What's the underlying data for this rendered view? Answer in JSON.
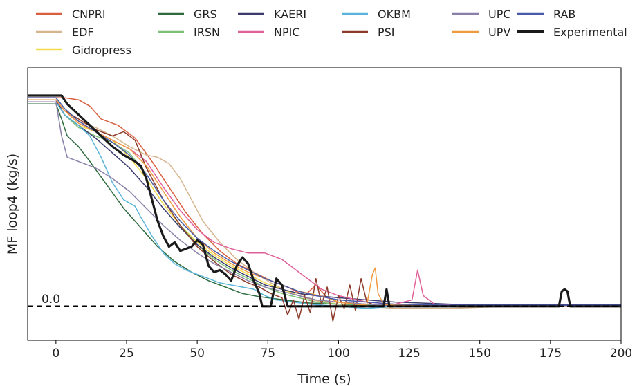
{
  "chart_data": {
    "type": "line",
    "xlabel": "Time (s)",
    "ylabel": "MF loop4 (kg/s)",
    "xlim": [
      -10,
      200
    ],
    "ylim": [
      -0.16,
      1.12
    ],
    "xticks": [
      0,
      25,
      50,
      75,
      100,
      125,
      150,
      175,
      200
    ],
    "xtick_labels": [
      "0",
      "25",
      "50",
      "75",
      "100",
      "125",
      "150",
      "175",
      "200"
    ],
    "grid": false,
    "legend_placement": "top (above plot, 6 columns)",
    "reference_line": {
      "y": 0.0,
      "label": "0.0",
      "style": "dashed",
      "color": "#000000"
    },
    "series": [
      {
        "name": "CNPRI",
        "color": "#d95f3e",
        "x": [
          -10,
          0,
          3,
          8,
          12,
          16,
          22,
          28,
          34,
          40,
          46,
          52,
          58,
          64,
          70,
          76,
          82,
          88,
          92,
          96,
          100,
          110,
          120,
          140,
          160,
          180,
          200
        ],
        "y": [
          0.98,
          0.98,
          0.98,
          0.97,
          0.94,
          0.88,
          0.85,
          0.79,
          0.68,
          0.56,
          0.44,
          0.34,
          0.26,
          0.2,
          0.16,
          0.12,
          0.09,
          0.05,
          0.1,
          0.04,
          0.02,
          0.01,
          0.01,
          0.005,
          0.005,
          0.005,
          0.005
        ]
      },
      {
        "name": "EDF",
        "color": "#d6b58e",
        "x": [
          -10,
          0,
          3,
          8,
          14,
          20,
          26,
          32,
          36,
          40,
          44,
          48,
          52,
          58,
          64,
          70,
          76,
          82,
          88,
          94,
          100,
          110,
          120,
          140,
          160,
          180,
          200
        ],
        "y": [
          0.96,
          0.96,
          0.92,
          0.87,
          0.84,
          0.8,
          0.75,
          0.71,
          0.7,
          0.67,
          0.6,
          0.5,
          0.4,
          0.3,
          0.22,
          0.16,
          0.11,
          0.07,
          0.04,
          0.02,
          0.01,
          0.0,
          -0.01,
          -0.01,
          0.0,
          0.0,
          0.0
        ]
      },
      {
        "name": "Gidropress",
        "color": "#f2dc4b",
        "x": [
          -10,
          0,
          3,
          8,
          14,
          20,
          26,
          32,
          38,
          44,
          50,
          56,
          62,
          68,
          74,
          80,
          86,
          92,
          98,
          110,
          130,
          160,
          200
        ],
        "y": [
          0.96,
          0.96,
          0.9,
          0.85,
          0.82,
          0.78,
          0.7,
          0.6,
          0.48,
          0.38,
          0.3,
          0.24,
          0.19,
          0.15,
          0.11,
          0.08,
          0.05,
          0.03,
          0.02,
          0.01,
          0.005,
          0.005,
          0.005
        ]
      },
      {
        "name": "GRS",
        "color": "#2e6b3e",
        "x": [
          -10,
          0,
          2,
          4,
          8,
          12,
          18,
          24,
          30,
          36,
          42,
          48,
          54,
          60,
          66,
          72,
          78,
          84,
          90,
          100,
          110,
          130,
          160,
          200
        ],
        "y": [
          0.95,
          0.95,
          0.88,
          0.8,
          0.75,
          0.68,
          0.57,
          0.46,
          0.37,
          0.28,
          0.21,
          0.16,
          0.12,
          0.09,
          0.06,
          0.045,
          0.035,
          0.025,
          0.015,
          0.01,
          0.005,
          0.0,
          0.0,
          0.0
        ]
      },
      {
        "name": "IRSN",
        "color": "#7cbf77",
        "x": [
          -10,
          0,
          3,
          8,
          14,
          20,
          26,
          32,
          38,
          44,
          50,
          56,
          62,
          68,
          74,
          80,
          86,
          92,
          100,
          120,
          160,
          200
        ],
        "y": [
          0.97,
          0.97,
          0.9,
          0.84,
          0.8,
          0.77,
          0.72,
          0.62,
          0.5,
          0.38,
          0.29,
          0.22,
          0.17,
          0.13,
          0.09,
          0.06,
          0.04,
          0.02,
          0.01,
          0.005,
          0.0,
          0.0
        ]
      },
      {
        "name": "KAERI",
        "color": "#3b3b6e",
        "x": [
          -10,
          0,
          3,
          8,
          14,
          20,
          26,
          32,
          38,
          44,
          50,
          56,
          62,
          68,
          74,
          80,
          86,
          92,
          100,
          110,
          120,
          140,
          160,
          180,
          200
        ],
        "y": [
          0.97,
          0.97,
          0.9,
          0.85,
          0.79,
          0.72,
          0.65,
          0.56,
          0.46,
          0.37,
          0.29,
          0.23,
          0.18,
          0.14,
          0.1,
          0.08,
          0.06,
          0.05,
          0.04,
          0.03,
          0.02,
          0.01,
          0.01,
          0.01,
          0.01
        ]
      },
      {
        "name": "NPIC",
        "color": "#e0609a",
        "x": [
          -10,
          0,
          3,
          8,
          14,
          20,
          26,
          32,
          38,
          44,
          50,
          56,
          62,
          68,
          74,
          80,
          86,
          90,
          94,
          100,
          110,
          120,
          126,
          128,
          130,
          134,
          140,
          160,
          180,
          200
        ],
        "y": [
          0.97,
          0.97,
          0.92,
          0.86,
          0.82,
          0.78,
          0.74,
          0.68,
          0.56,
          0.45,
          0.36,
          0.3,
          0.27,
          0.25,
          0.25,
          0.22,
          0.16,
          0.12,
          0.08,
          0.05,
          0.02,
          0.01,
          0.03,
          0.17,
          0.05,
          0.01,
          0.005,
          0.005,
          0.005,
          0.005
        ]
      },
      {
        "name": "OKBM",
        "color": "#5ab4d9",
        "x": [
          -10,
          0,
          3,
          8,
          12,
          16,
          20,
          24,
          28,
          30,
          34,
          38,
          42,
          46,
          50,
          54,
          58,
          62,
          66,
          70,
          74,
          78,
          84,
          90,
          100,
          110,
          120,
          140,
          160,
          200
        ],
        "y": [
          0.96,
          0.96,
          0.9,
          0.85,
          0.8,
          0.7,
          0.58,
          0.5,
          0.47,
          0.42,
          0.33,
          0.25,
          0.2,
          0.17,
          0.15,
          0.13,
          0.11,
          0.1,
          0.09,
          0.08,
          0.05,
          0.03,
          0.02,
          0.01,
          0.0,
          -0.01,
          0.0,
          0.0,
          0.0,
          0.0
        ]
      },
      {
        "name": "PSI",
        "color": "#8c3a2a",
        "x": [
          -10,
          0,
          3,
          8,
          14,
          20,
          24,
          28,
          32,
          38,
          44,
          50,
          56,
          62,
          68,
          72,
          76,
          80,
          82,
          84,
          86,
          88,
          90,
          92,
          94,
          96,
          98,
          100,
          102,
          104,
          106,
          108,
          110,
          112,
          114,
          116,
          120,
          140,
          160,
          200
        ],
        "y": [
          0.97,
          0.97,
          0.92,
          0.88,
          0.83,
          0.8,
          0.82,
          0.78,
          0.65,
          0.5,
          0.38,
          0.28,
          0.21,
          0.15,
          0.11,
          0.09,
          0.06,
          0.04,
          -0.04,
          0.03,
          -0.06,
          0.05,
          -0.03,
          0.13,
          0.01,
          0.09,
          -0.07,
          0.05,
          -0.01,
          0.1,
          -0.02,
          0.13,
          0.02,
          0.01,
          0.0,
          0.005,
          0.0,
          0.0,
          0.0,
          0.0
        ]
      },
      {
        "name": "UPC",
        "color": "#8a7fa8",
        "x": [
          -10,
          0,
          2,
          4,
          8,
          14,
          20,
          26,
          32,
          38,
          44,
          50,
          56,
          62,
          68,
          74,
          80,
          86,
          92,
          100,
          110,
          120,
          140,
          160,
          200
        ],
        "y": [
          0.96,
          0.96,
          0.8,
          0.7,
          0.68,
          0.65,
          0.6,
          0.54,
          0.46,
          0.38,
          0.31,
          0.25,
          0.2,
          0.16,
          0.12,
          0.09,
          0.07,
          0.05,
          0.03,
          0.02,
          0.01,
          0.005,
          0.005,
          0.005,
          0.005
        ]
      },
      {
        "name": "UPV",
        "color": "#f0993f",
        "x": [
          -10,
          0,
          3,
          8,
          14,
          20,
          26,
          32,
          38,
          44,
          50,
          56,
          62,
          68,
          74,
          80,
          86,
          90,
          96,
          100,
          106,
          110,
          112,
          113,
          114,
          116,
          120,
          140,
          160,
          200
        ],
        "y": [
          0.97,
          0.97,
          0.92,
          0.86,
          0.82,
          0.78,
          0.74,
          0.66,
          0.54,
          0.42,
          0.32,
          0.25,
          0.2,
          0.16,
          0.13,
          0.1,
          0.07,
          0.06,
          0.04,
          0.02,
          0.01,
          0.005,
          0.15,
          0.18,
          0.06,
          0.01,
          0.005,
          0.005,
          0.005,
          0.005
        ]
      },
      {
        "name": "RAB",
        "color": "#4a5aa8",
        "x": [
          -10,
          0,
          3,
          8,
          14,
          20,
          26,
          32,
          38,
          44,
          50,
          56,
          62,
          68,
          74,
          80,
          86,
          92,
          100,
          110,
          120,
          140,
          160,
          180,
          200
        ],
        "y": [
          0.98,
          0.98,
          0.93,
          0.87,
          0.82,
          0.77,
          0.71,
          0.62,
          0.5,
          0.4,
          0.32,
          0.26,
          0.21,
          0.17,
          0.13,
          0.1,
          0.07,
          0.05,
          0.03,
          0.02,
          0.01,
          0.005,
          0.005,
          0.005,
          0.005
        ]
      },
      {
        "name": "Experimental",
        "color": "#1a1a1a",
        "x": [
          -10,
          0,
          2,
          4,
          8,
          12,
          16,
          20,
          24,
          28,
          30,
          32,
          34,
          36,
          38,
          40,
          42,
          44,
          46,
          48,
          50,
          52,
          54,
          56,
          58,
          60,
          62,
          64,
          66,
          68,
          70,
          72,
          73,
          76,
          78,
          80,
          82,
          84,
          100,
          114,
          116,
          117,
          118,
          120,
          140,
          160,
          178,
          179,
          180,
          181,
          182,
          200
        ],
        "y": [
          0.99,
          0.99,
          0.99,
          0.95,
          0.9,
          0.85,
          0.8,
          0.75,
          0.71,
          0.68,
          0.66,
          0.6,
          0.5,
          0.4,
          0.33,
          0.28,
          0.3,
          0.26,
          0.27,
          0.28,
          0.31,
          0.29,
          0.19,
          0.16,
          0.17,
          0.15,
          0.12,
          0.19,
          0.23,
          0.2,
          0.12,
          0.06,
          0.0,
          0.0,
          0.13,
          0.1,
          0.0,
          0.0,
          0.0,
          0.0,
          0.0,
          0.08,
          0.0,
          0.0,
          0.0,
          0.0,
          0.0,
          0.07,
          0.08,
          0.07,
          0.0,
          0.0
        ]
      }
    ]
  }
}
